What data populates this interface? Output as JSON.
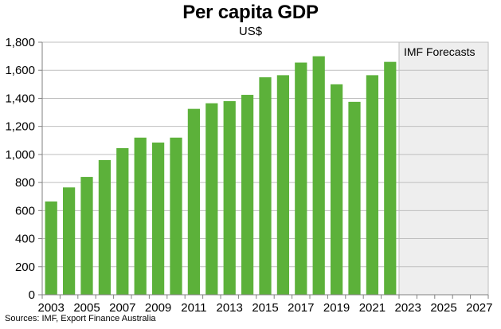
{
  "chart_data": {
    "type": "bar",
    "title": "Per capita GDP",
    "subtitle": "US$",
    "source": "Sources: IMF, Export Finance Australia",
    "forecast_label": "IMF Forecasts",
    "forecast_start_year": 2022.5,
    "x_range": [
      2002.5,
      2027.5
    ],
    "x_tick_labels": [
      "2003",
      "2005",
      "2007",
      "2009",
      "2011",
      "2013",
      "2015",
      "2017",
      "2019",
      "2021",
      "2023",
      "2025",
      "2027"
    ],
    "categories": [
      "2003",
      "2004",
      "2005",
      "2006",
      "2007",
      "2008",
      "2009",
      "2010",
      "2011",
      "2012",
      "2013",
      "2014",
      "2015",
      "2016",
      "2017",
      "2018",
      "2019",
      "2020",
      "2021",
      "2022"
    ],
    "values": [
      665,
      765,
      840,
      960,
      1045,
      1120,
      1085,
      1120,
      1325,
      1365,
      1380,
      1425,
      1550,
      1565,
      1655,
      1700,
      1500,
      1375,
      1565,
      1660
    ],
    "ylim": [
      0,
      1800
    ],
    "y_ticks": [
      0,
      200,
      400,
      600,
      800,
      1000,
      1200,
      1400,
      1600,
      1800
    ],
    "y_tick_labels": [
      "0",
      "200",
      "400",
      "600",
      "800",
      "1,000",
      "1,200",
      "1,400",
      "1,600",
      "1,800"
    ],
    "grid": true,
    "colors": {
      "bar": "#5cb13a",
      "forecast_shade": "#eeeeee",
      "grid": "#bfbfbf",
      "axis": "#808080"
    }
  }
}
